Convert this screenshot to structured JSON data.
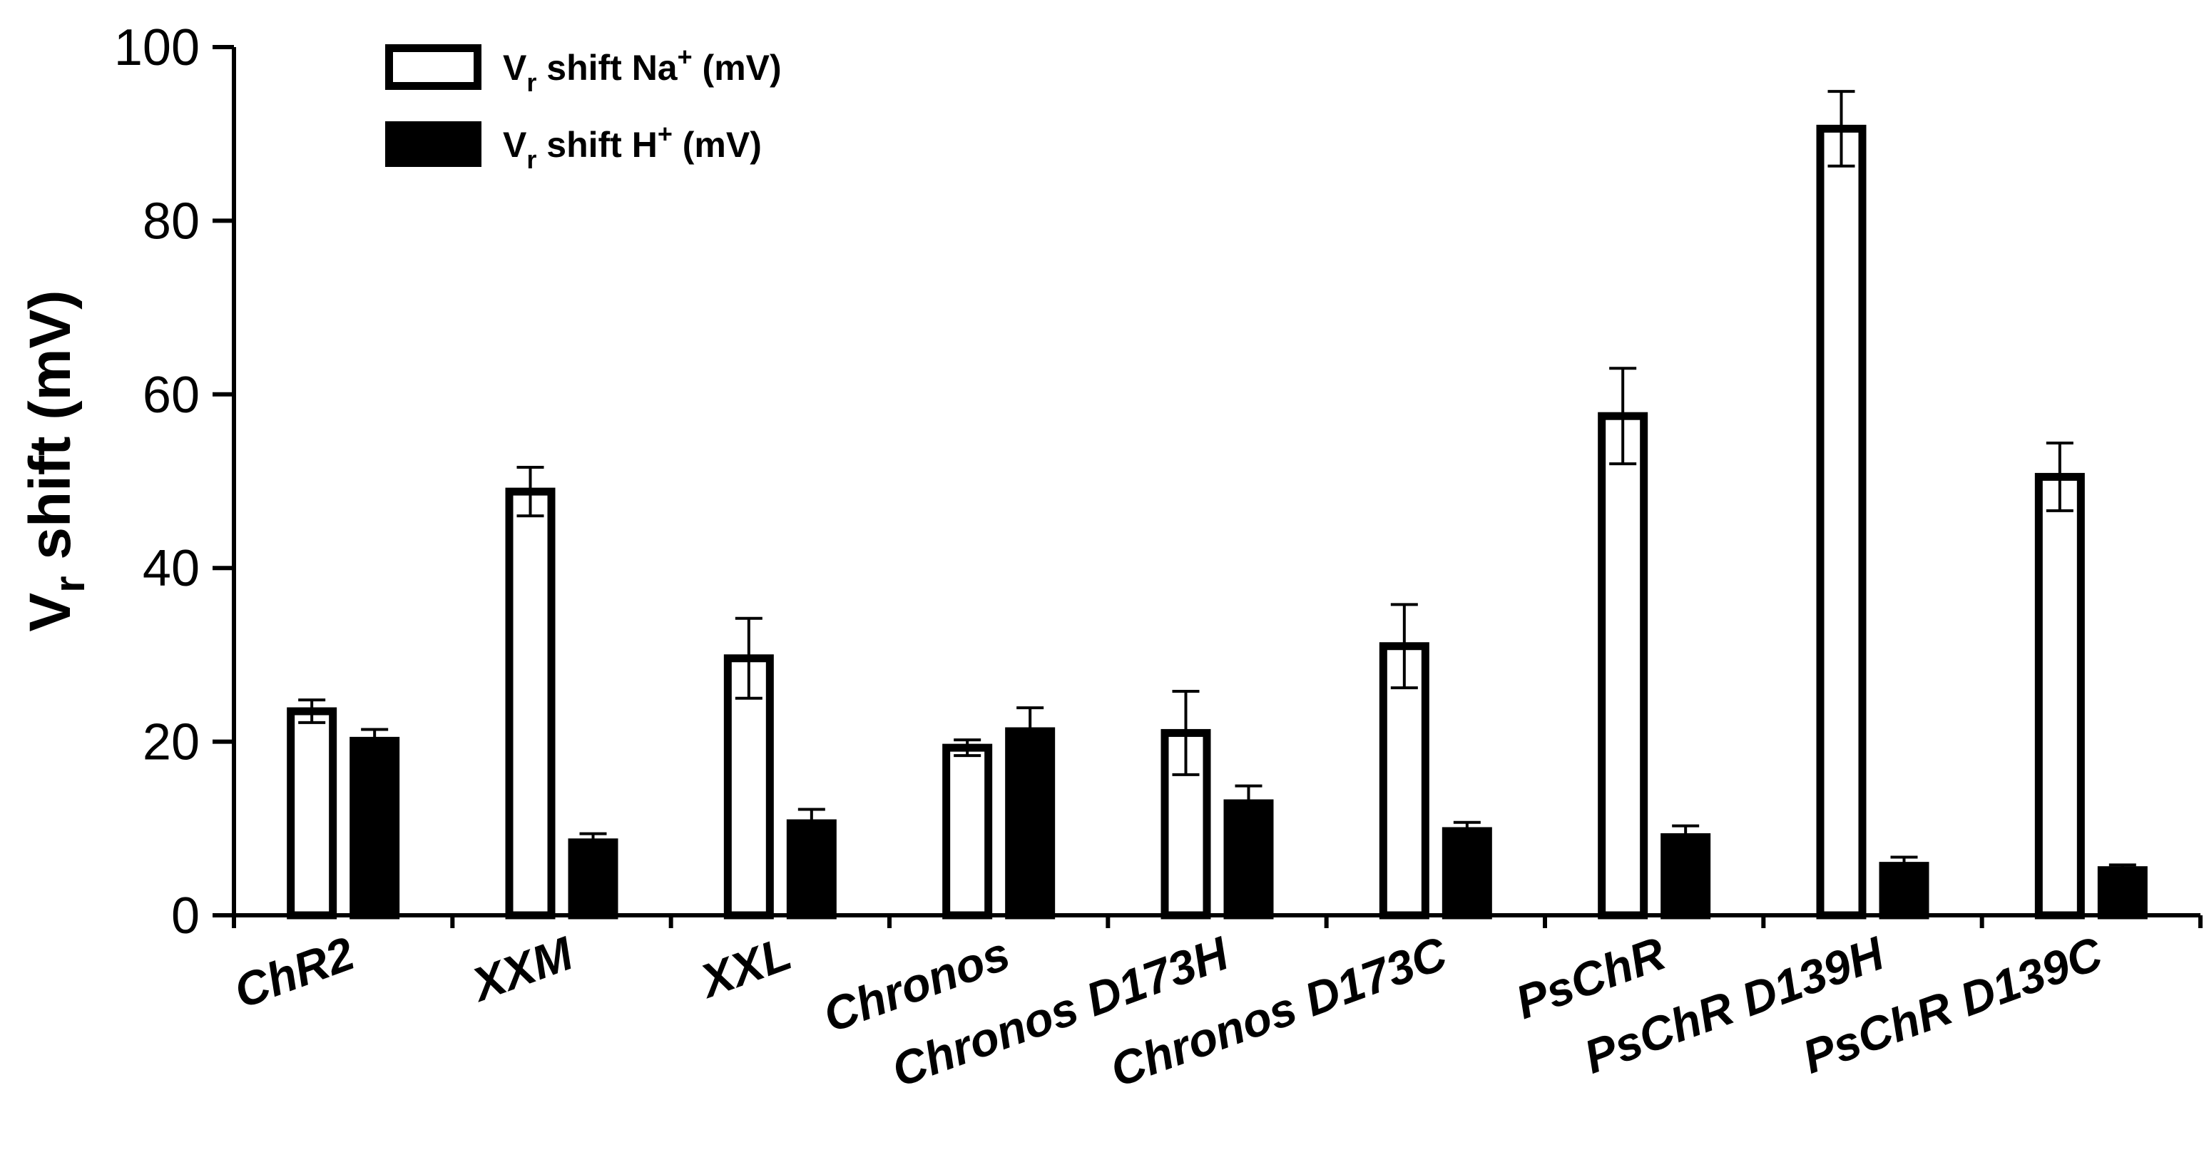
{
  "chart_data": {
    "type": "bar",
    "title": "",
    "xlabel": "",
    "ylabel": {
      "main": "V",
      "sub": "r",
      "rest": " shift (mV)"
    },
    "ylim": [
      0,
      100
    ],
    "yticks": [
      0,
      20,
      40,
      60,
      80,
      100
    ],
    "grid": false,
    "legend_position": "top-left",
    "categories": [
      "ChR2",
      "XXM",
      "XXL",
      "Chronos",
      "Chronos D173H",
      "Chronos D173C",
      "PsChR",
      "PsChR D139H",
      "PsChR D139C"
    ],
    "series": [
      {
        "name": "V_r shift Na+ (mV)",
        "legend": {
          "v": "V",
          "sub": "r",
          "mid": " shift  Na",
          "sup": "+",
          "end": " (mV)"
        },
        "fill": "#ffffff",
        "stroke": "#000000",
        "values": [
          23.5,
          48.8,
          29.6,
          19.3,
          21.0,
          31.0,
          57.5,
          90.6,
          50.5
        ],
        "errors": [
          1.3,
          2.8,
          4.6,
          0.9,
          4.8,
          4.8,
          5.5,
          4.3,
          3.9
        ]
      },
      {
        "name": "V_r shift H+ (mV)",
        "legend": {
          "v": "V",
          "sub": "r",
          "mid": " shift  H",
          "sup": "+",
          "end": "  (mV)"
        },
        "fill": "#000000",
        "stroke": "#000000",
        "values": [
          20.1,
          8.4,
          10.6,
          21.2,
          12.9,
          9.7,
          9.0,
          5.7,
          5.2
        ],
        "errors": [
          1.3,
          1.0,
          1.6,
          2.7,
          2.0,
          1.0,
          1.3,
          1.0,
          0.6
        ]
      }
    ]
  }
}
